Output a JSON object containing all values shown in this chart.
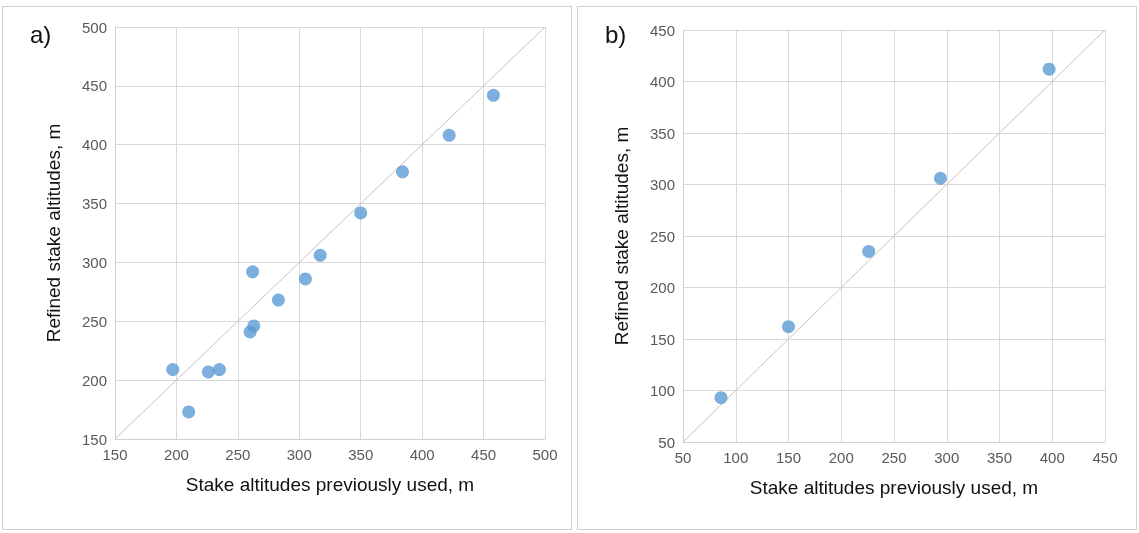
{
  "chart_data": [
    {
      "type": "scatter",
      "title": "a)",
      "xlabel": "Stake altitudes previously used, m",
      "ylabel": "Refined stake altitudes, m",
      "xlim": [
        150,
        500
      ],
      "xticks": [
        150,
        200,
        250,
        300,
        350,
        400,
        450,
        500
      ],
      "ylim": [
        150,
        500
      ],
      "yticks": [
        150,
        200,
        250,
        300,
        350,
        400,
        450,
        500
      ],
      "grid": true,
      "marker": "circle",
      "series": [
        {
          "color": "#5b9bd5",
          "x": [
            197,
            210,
            226,
            235,
            260,
            263,
            262,
            283,
            305,
            317,
            350,
            384,
            422,
            458
          ],
          "values": [
            209,
            173,
            207,
            209,
            241,
            246,
            292,
            268,
            286,
            306,
            342,
            377,
            408,
            442
          ]
        },
        {
          "type": "line",
          "color": "#c9c3bd",
          "marker": "none",
          "line_style": "solid",
          "x": [
            150,
            500
          ],
          "values": [
            150,
            500
          ]
        }
      ]
    },
    {
      "type": "scatter",
      "title": "b)",
      "xlabel": "Stake altitudes previously used, m",
      "ylabel": "Refined stake altitudes, m",
      "xlim": [
        50,
        450
      ],
      "xticks": [
        50,
        100,
        150,
        200,
        250,
        300,
        350,
        400,
        450
      ],
      "ylim": [
        50,
        450
      ],
      "yticks": [
        50,
        100,
        150,
        200,
        250,
        300,
        350,
        400,
        450
      ],
      "grid": true,
      "marker": "circle",
      "series": [
        {
          "color": "#5b9bd5",
          "x": [
            86,
            150,
            226,
            294,
            397
          ],
          "values": [
            93,
            162,
            235,
            306,
            412
          ]
        },
        {
          "type": "line",
          "color": "#c9c3bd",
          "marker": "none",
          "line_style": "solid",
          "x": [
            50,
            450
          ],
          "values": [
            50,
            450
          ]
        }
      ]
    }
  ]
}
